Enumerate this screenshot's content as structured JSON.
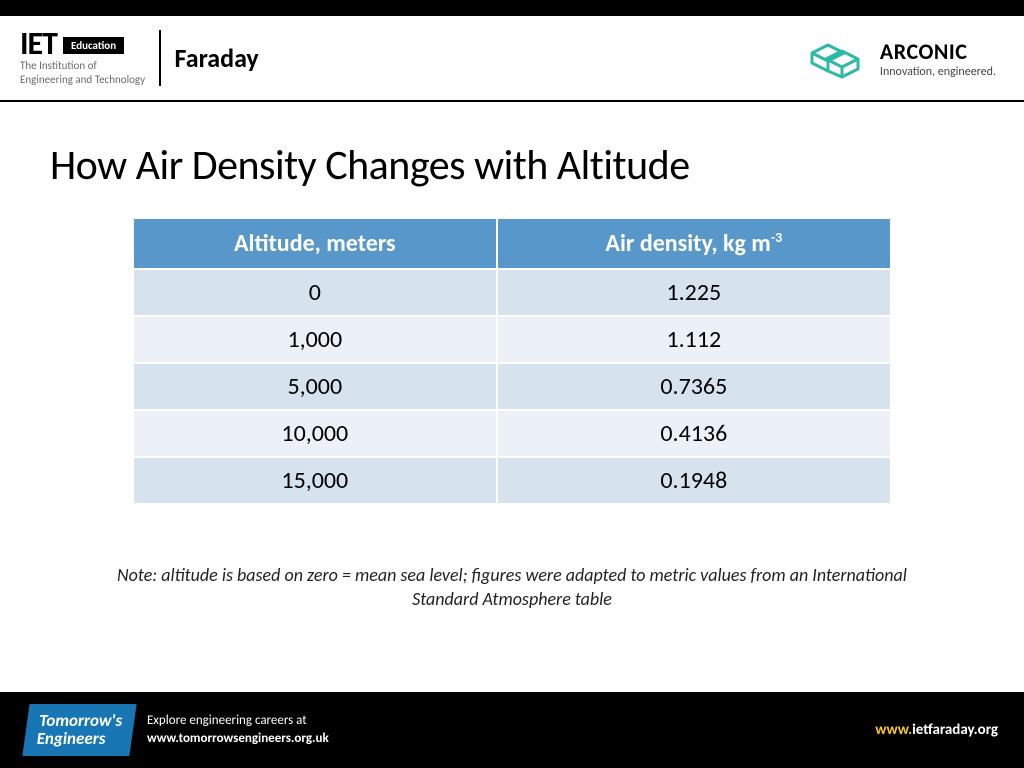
{
  "header": {
    "iet_mark": "IET",
    "edu_badge": "Education",
    "iet_sub1": "The Institution of",
    "iet_sub2": "Engineering and Technology",
    "faraday": "Faraday",
    "arconic_name": "ARCONIC",
    "arconic_tag": "Innovation, engineered.",
    "arconic_icon_color": "#2db8a8"
  },
  "title": "How Air Density Changes with Altitude",
  "table": {
    "header_bg": "#5797c9",
    "header_fg": "#ffffff",
    "row_odd_bg": "#d6e3ef",
    "row_even_bg": "#ecf1f7",
    "cell_fontsize": 24,
    "columns": [
      "Altitude, meters",
      "Air density, kg m"
    ],
    "col2_sup": "-3",
    "rows": [
      [
        "0",
        "1.225"
      ],
      [
        "1,000",
        "1.112"
      ],
      [
        "5,000",
        "0.7365"
      ],
      [
        "10,000",
        "0.4136"
      ],
      [
        "15,000",
        "0.1948"
      ]
    ]
  },
  "note": "Note: altitude is based on zero = mean sea level; figures were adapted to metric values from an International Standard Atmosphere table",
  "footer": {
    "te_line1": "Tomorrow's",
    "te_line2": "Engineers",
    "explore1": "Explore engineering careers at",
    "explore2": "www.tomorrowsengineers.org.uk",
    "url_prefix": "www.",
    "url_rest": "ietfaraday.org",
    "te_badge_bg": "#1976b5",
    "accent_color": "#f7c531"
  }
}
